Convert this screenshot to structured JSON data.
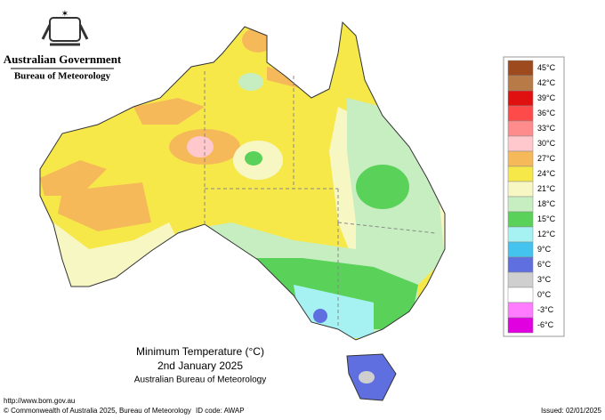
{
  "header": {
    "government": "Australian Government",
    "bureau": "Bureau of Meteorology"
  },
  "legend": {
    "items": [
      {
        "label": "45°C",
        "color": "#9c4a1e"
      },
      {
        "label": "42°C",
        "color": "#b87a46"
      },
      {
        "label": "39°C",
        "color": "#e01010"
      },
      {
        "label": "36°C",
        "color": "#ff4a4a"
      },
      {
        "label": "33°C",
        "color": "#ff8c8c"
      },
      {
        "label": "30°C",
        "color": "#ffc8cc"
      },
      {
        "label": "27°C",
        "color": "#f5b95a"
      },
      {
        "label": "24°C",
        "color": "#f7e84a"
      },
      {
        "label": "21°C",
        "color": "#f7f7c4"
      },
      {
        "label": "18°C",
        "color": "#c6eec0"
      },
      {
        "label": "15°C",
        "color": "#5ad25a"
      },
      {
        "label": "12°C",
        "color": "#a6f2f2"
      },
      {
        "label": "9°C",
        "color": "#45c3ef"
      },
      {
        "label": "6°C",
        "color": "#5f6fe0"
      },
      {
        "label": "3°C",
        "color": "#cfcfcf"
      },
      {
        "label": "0°C",
        "color": "#ffffff"
      },
      {
        "label": "-3°C",
        "color": "#ff7cff"
      },
      {
        "label": "-6°C",
        "color": "#e000e0"
      }
    ]
  },
  "caption": {
    "title": "Minimum Temperature (°C)",
    "date": "2nd January 2025",
    "source": "Australian Bureau of Meteorology"
  },
  "footer": {
    "url": "http://www.bom.gov.au",
    "copyright": "© Commonwealth of Australia 2025, Bureau of Meteorology",
    "id_code": "ID code: AWAP",
    "issued": "Issued: 02/01/2025"
  }
}
